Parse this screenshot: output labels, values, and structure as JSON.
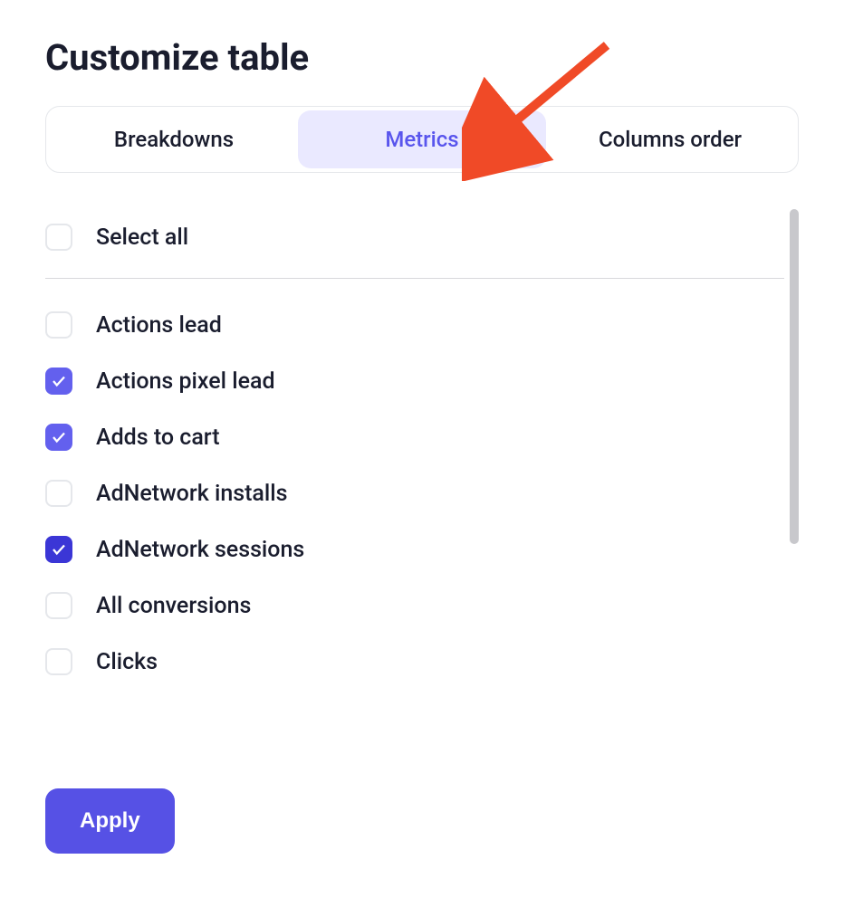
{
  "title": "Customize table",
  "tabs": [
    {
      "label": "Breakdowns",
      "active": false
    },
    {
      "label": "Metrics",
      "active": true
    },
    {
      "label": "Columns order",
      "active": false
    }
  ],
  "select_all": {
    "label": "Select all",
    "checked": false
  },
  "metrics": [
    {
      "label": "Actions lead",
      "checked": false,
      "variant": ""
    },
    {
      "label": "Actions pixel lead",
      "checked": true,
      "variant": ""
    },
    {
      "label": "Adds to cart",
      "checked": true,
      "variant": ""
    },
    {
      "label": "AdNetwork installs",
      "checked": false,
      "variant": ""
    },
    {
      "label": "AdNetwork sessions",
      "checked": true,
      "variant": "dark"
    },
    {
      "label": "All conversions",
      "checked": false,
      "variant": ""
    },
    {
      "label": "Clicks",
      "checked": false,
      "variant": ""
    }
  ],
  "apply_label": "Apply",
  "colors": {
    "accent": "#5651e5",
    "accent_light": "#6360ee",
    "accent_dark": "#3b36d6",
    "tab_active_bg": "#eae9ff",
    "text_primary": "#1a1d2e",
    "border": "#e5e7eb",
    "divider": "#d8d8dc",
    "arrow": "#f04a27"
  }
}
